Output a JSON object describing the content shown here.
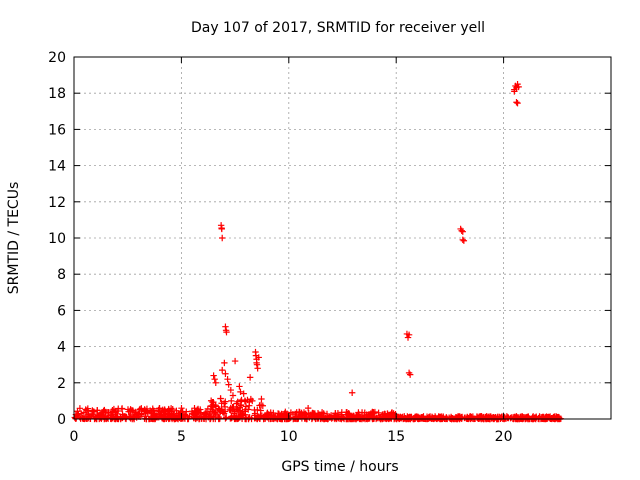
{
  "chart_data": {
    "type": "scatter",
    "title": "Day 107 of 2017, SRMTID for receiver yell",
    "xlabel": "GPS time / hours",
    "ylabel": "SRMTID / TECUs",
    "xlim": [
      0,
      25
    ],
    "ylim": [
      0,
      20
    ],
    "xticks": [
      0,
      5,
      10,
      15,
      20
    ],
    "yticks": [
      0,
      2,
      4,
      6,
      8,
      10,
      12,
      14,
      16,
      18,
      20
    ],
    "grid": true,
    "marker": "+",
    "color": "#ff0000",
    "background_band_approx": [
      {
        "x_start": 0.0,
        "x_end": 6.3,
        "y_low": 0.0,
        "y_high": 0.6
      },
      {
        "x_start": 6.3,
        "x_end": 8.8,
        "y_low": 0.0,
        "y_high": 1.2
      },
      {
        "x_start": 8.8,
        "x_end": 15.0,
        "y_low": 0.0,
        "y_high": 0.4
      },
      {
        "x_start": 15.0,
        "x_end": 22.7,
        "y_low": 0.0,
        "y_high": 0.15
      }
    ],
    "outliers": [
      {
        "x": 6.85,
        "y": 10.7
      },
      {
        "x": 6.88,
        "y": 10.5
      },
      {
        "x": 6.9,
        "y": 10.0
      },
      {
        "x": 6.87,
        "y": 10.55
      },
      {
        "x": 7.05,
        "y": 5.1
      },
      {
        "x": 7.08,
        "y": 4.9
      },
      {
        "x": 7.1,
        "y": 4.8
      },
      {
        "x": 6.5,
        "y": 2.4
      },
      {
        "x": 6.55,
        "y": 2.2
      },
      {
        "x": 6.6,
        "y": 2.0
      },
      {
        "x": 6.9,
        "y": 2.7
      },
      {
        "x": 7.0,
        "y": 3.1
      },
      {
        "x": 7.05,
        "y": 2.5
      },
      {
        "x": 7.15,
        "y": 2.2
      },
      {
        "x": 7.2,
        "y": 1.9
      },
      {
        "x": 7.3,
        "y": 1.6
      },
      {
        "x": 7.4,
        "y": 1.3
      },
      {
        "x": 7.5,
        "y": 3.2
      },
      {
        "x": 7.7,
        "y": 1.8
      },
      {
        "x": 7.75,
        "y": 1.5
      },
      {
        "x": 7.9,
        "y": 1.4
      },
      {
        "x": 8.2,
        "y": 2.3
      },
      {
        "x": 8.3,
        "y": 1.0
      },
      {
        "x": 8.45,
        "y": 3.7
      },
      {
        "x": 8.47,
        "y": 3.5
      },
      {
        "x": 8.5,
        "y": 3.3
      },
      {
        "x": 8.5,
        "y": 3.1
      },
      {
        "x": 8.52,
        "y": 3.0
      },
      {
        "x": 8.55,
        "y": 2.8
      },
      {
        "x": 8.6,
        "y": 3.4
      },
      {
        "x": 10.9,
        "y": 0.6
      },
      {
        "x": 12.95,
        "y": 1.45
      },
      {
        "x": 15.5,
        "y": 4.7
      },
      {
        "x": 15.55,
        "y": 4.5
      },
      {
        "x": 15.6,
        "y": 4.65
      },
      {
        "x": 15.6,
        "y": 2.55
      },
      {
        "x": 15.65,
        "y": 2.45
      },
      {
        "x": 18.0,
        "y": 10.5
      },
      {
        "x": 18.05,
        "y": 10.4
      },
      {
        "x": 18.1,
        "y": 10.35
      },
      {
        "x": 18.1,
        "y": 9.9
      },
      {
        "x": 18.15,
        "y": 9.85
      },
      {
        "x": 20.5,
        "y": 18.2
      },
      {
        "x": 20.55,
        "y": 18.4
      },
      {
        "x": 20.6,
        "y": 18.3
      },
      {
        "x": 20.65,
        "y": 18.5
      },
      {
        "x": 20.5,
        "y": 18.1
      },
      {
        "x": 20.7,
        "y": 18.35
      },
      {
        "x": 20.6,
        "y": 17.5
      },
      {
        "x": 20.65,
        "y": 17.45
      }
    ]
  }
}
